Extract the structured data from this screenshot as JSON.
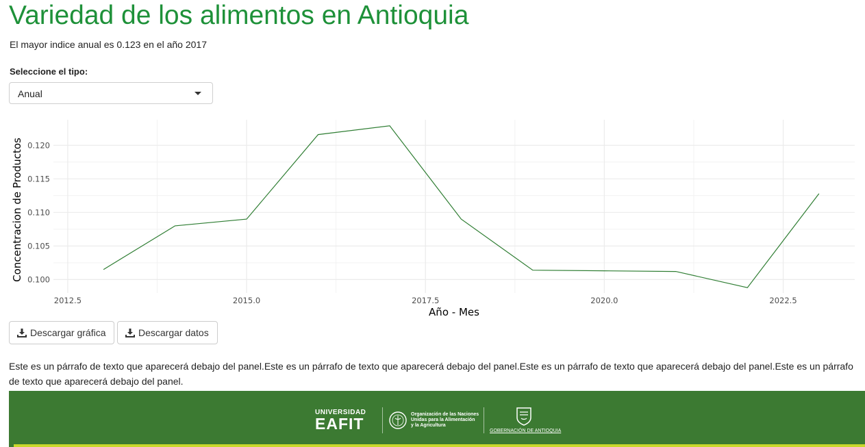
{
  "header": {
    "title": "Variedad de los alimentos en Antioquia",
    "subtitle": "El mayor indice anual es 0.123 en el año 2017"
  },
  "selector": {
    "label": "Seleccione el tipo:",
    "value": "Anual"
  },
  "buttons": {
    "download_chart": "Descargar gráfica",
    "download_data": "Descargar datos"
  },
  "paragraph": "Este es un párrafo de texto que aparecerá debajo del panel.Este es un párrafo de texto que aparecerá debajo del panel.Este es un párrafo de texto que aparecerá debajo del panel.Este es un párrafo de texto que aparecerá debajo del panel.",
  "footer": {
    "eafit_top": "UNIVERSIDAD",
    "eafit_main": "EAFIT",
    "fao_line1": "Organización de las Naciones",
    "fao_line2": "Unidas para la Alimentación",
    "fao_line3": "y la Agricultura",
    "gobernacion": "GOBERNACIÓN DE ANTIOQUIA"
  },
  "colors": {
    "title": "#1e9139",
    "line": "#2e7d32",
    "footer_bg": "#3c7a32",
    "footer_stripe": "#c9d82c"
  },
  "chart_data": {
    "type": "line",
    "xlabel": "Año - Mes",
    "ylabel": "Concentracion de Productos",
    "xlim": [
      2012.3,
      2023.5
    ],
    "ylim": [
      0.098,
      0.1238
    ],
    "xticks": [
      2012.5,
      2015.0,
      2017.5,
      2020.0,
      2022.5
    ],
    "yticks": [
      0.1,
      0.105,
      0.11,
      0.115,
      0.12
    ],
    "x": [
      2013,
      2014,
      2015,
      2016,
      2017,
      2018,
      2019,
      2020,
      2021,
      2022,
      2023
    ],
    "values": [
      0.1015,
      0.108,
      0.109,
      0.1216,
      0.1229,
      0.109,
      0.1014,
      0.1013,
      0.1012,
      0.0988,
      0.1128
    ],
    "grid": true
  }
}
